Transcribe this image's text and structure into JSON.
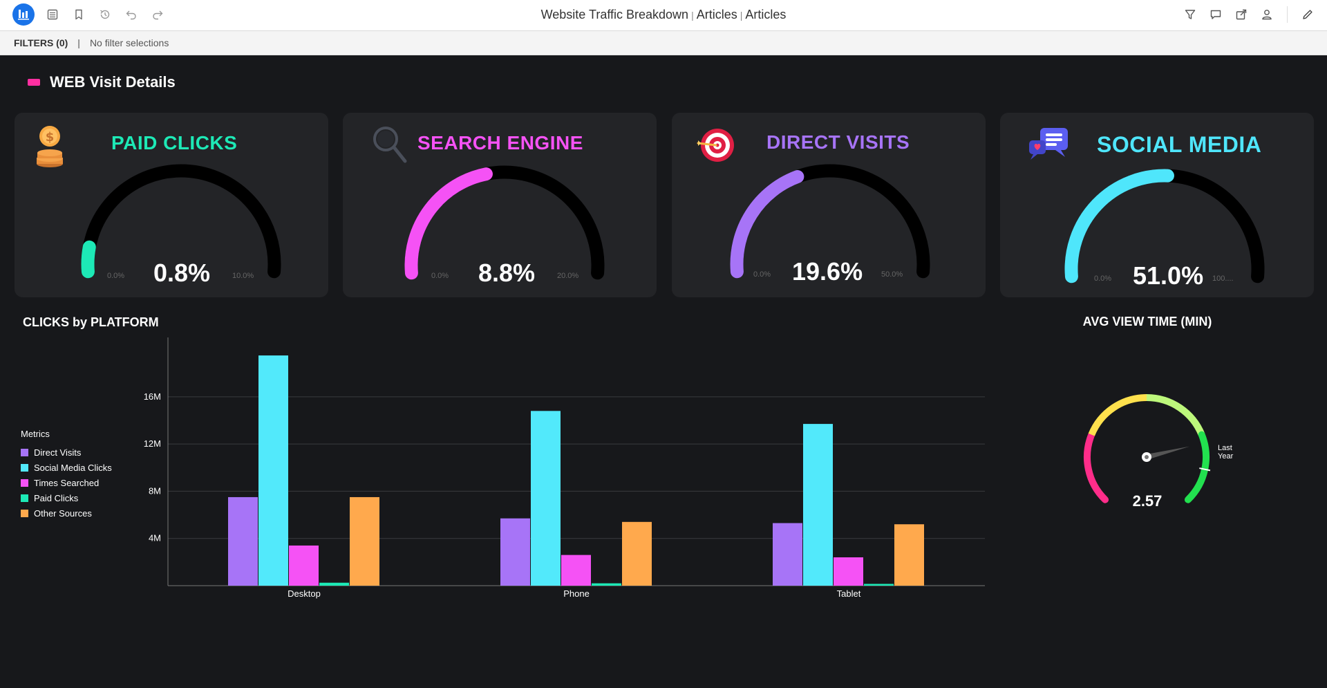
{
  "toolbar": {
    "title_parts": [
      "Website Traffic Breakdown",
      "Articles",
      "Articles"
    ],
    "separator": "|"
  },
  "filters": {
    "label": "FILTERS (0)",
    "separator": "|",
    "status": "No filter selections"
  },
  "section": {
    "title": "WEB Visit Details",
    "marker_color": "#ff2fa1"
  },
  "kpis": [
    {
      "title": "PAID CLICKS",
      "value_label": "0.8%",
      "value": 0.8,
      "min_label": "0.0%",
      "max_label": "10.0%",
      "min": 0,
      "max": 10,
      "color": "#1de9b6",
      "title_color": "#1de9b6",
      "icon": "money-bag-icon"
    },
    {
      "title": "SEARCH ENGINE",
      "value_label": "8.8%",
      "value": 8.8,
      "min_label": "0.0%",
      "max_label": "20.0%",
      "min": 0,
      "max": 20,
      "color": "#f552f5",
      "title_color": "#f552f5",
      "icon": "magnifier-icon"
    },
    {
      "title": "DIRECT VISITS",
      "value_label": "19.6%",
      "value": 19.6,
      "min_label": "0.0%",
      "max_label": "50.0%",
      "min": 0,
      "max": 50,
      "color": "#a774f7",
      "title_color": "#a774f7",
      "icon": "target-icon"
    },
    {
      "title": "SOCIAL MEDIA",
      "value_label": "51.0%",
      "value": 51.0,
      "min_label": "0.0%",
      "max_label": "100....",
      "min": 0,
      "max": 100,
      "color": "#4fe6fb",
      "title_color": "#4fe6fb",
      "icon": "chat-bubbles-icon"
    }
  ],
  "clicks_chart": {
    "title": "CLICKS by PLATFORM",
    "legend_title": "Metrics"
  },
  "chart_data": {
    "type": "bar",
    "categories": [
      "Desktop",
      "Phone",
      "Tablet"
    ],
    "series": [
      {
        "name": "Direct Visits",
        "color": "#a774f7",
        "values": [
          7.5,
          5.7,
          5.3
        ]
      },
      {
        "name": "Social Media Clicks",
        "color": "#52e9fb",
        "values": [
          19.5,
          14.8,
          13.7
        ]
      },
      {
        "name": "Times Searched",
        "color": "#f552f5",
        "values": [
          3.4,
          2.6,
          2.4
        ]
      },
      {
        "name": "Paid Clicks",
        "color": "#1de9b6",
        "values": [
          0.25,
          0.2,
          0.15
        ]
      },
      {
        "name": "Other Sources",
        "color": "#ffa94d",
        "values": [
          7.5,
          5.4,
          5.2
        ]
      }
    ],
    "y_ticks": [
      "4M",
      "8M",
      "12M",
      "16M"
    ],
    "y_tick_values": [
      4,
      8,
      12,
      16
    ],
    "ylim": [
      0,
      20.5
    ],
    "grid": true,
    "legend": "left",
    "xlabel": "",
    "ylabel": ""
  },
  "avg_view_time": {
    "title": "AVG VIEW TIME (MIN)",
    "value_label": "2.57",
    "target_label": "Last Year",
    "needle_fraction": 0.78,
    "target_fraction": 0.875,
    "band_colors": [
      "#ff2d8a",
      "#ffe14d",
      "#bdf77b",
      "#22e04f"
    ]
  }
}
